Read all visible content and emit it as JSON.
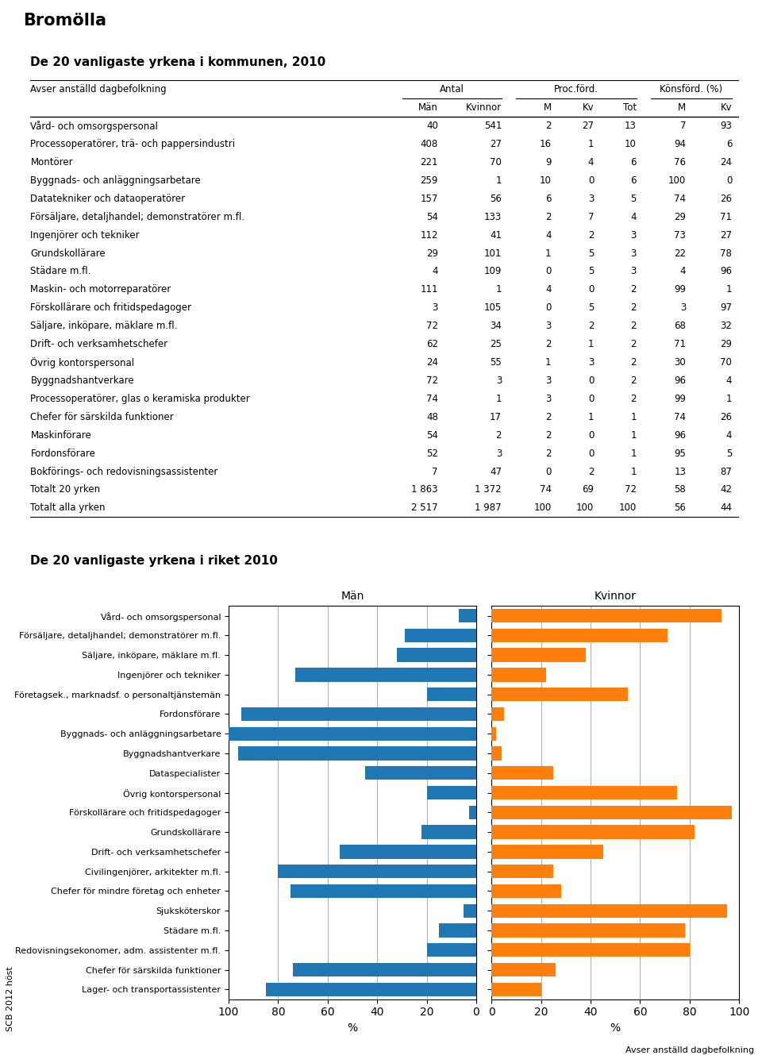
{
  "title": "Bromölla",
  "annotations": [
    "SCB 2012 höst"
  ],
  "chart_data": [
    {
      "type": "table",
      "title": "De 20 vanligaste yrkena i kommunen, 2010",
      "annotations": [
        "Avser anställd dagbefolkning"
      ],
      "categories": [
        "Vård- och omsorgspersonal",
        "Processoperatörer, trä- och pappersindustri",
        "Montörer",
        "Byggnads- och anläggningsarbetare",
        "Datatekniker och dataoperatörer",
        "Försäljare, detaljhandel; demonstratörer m.fl.",
        "Ingenjörer och tekniker",
        "Grundskollärare",
        "Städare m.fl.",
        "Maskin- och motorreparatörer",
        "Förskollärare och fritidspedagoger",
        "Säljare, inköpare, mäklare m.fl.",
        "Drift- och verksamhetschefer",
        "Övrig kontorspersonal",
        "Byggnadshantverkare",
        "Processoperatörer, glas o keramiska produkter",
        "Chefer för särskilda funktioner",
        "Maskinförare",
        "Fordonsförare",
        "Bokförings- och redovisningsassistenter",
        "Totalt 20 yrken",
        "Totalt alla yrken"
      ],
      "series": [
        {
          "name": "Män",
          "group": "Antal",
          "values": [
            40,
            408,
            221,
            259,
            157,
            54,
            112,
            29,
            4,
            111,
            3,
            72,
            62,
            24,
            72,
            74,
            48,
            54,
            52,
            7,
            1863,
            2517
          ],
          "value_labels": [
            "40",
            "408",
            "221",
            "259",
            "157",
            "54",
            "112",
            "29",
            "4",
            "111",
            "3",
            "72",
            "62",
            "24",
            "72",
            "74",
            "48",
            "54",
            "52",
            "7",
            "1 863",
            "2 517"
          ]
        },
        {
          "name": "Kvinnor",
          "group": "Antal",
          "values": [
            541,
            27,
            70,
            1,
            56,
            133,
            41,
            101,
            109,
            1,
            105,
            34,
            25,
            55,
            3,
            1,
            17,
            2,
            3,
            47,
            1372,
            1987
          ],
          "value_labels": [
            "541",
            "27",
            "70",
            "1",
            "56",
            "133",
            "41",
            "101",
            "109",
            "1",
            "105",
            "34",
            "25",
            "55",
            "3",
            "1",
            "17",
            "2",
            "3",
            "47",
            "1 372",
            "1 987"
          ]
        },
        {
          "name": "M",
          "group": "Proc.förd.",
          "values": [
            2,
            16,
            9,
            10,
            6,
            2,
            4,
            1,
            0,
            4,
            0,
            3,
            2,
            1,
            3,
            3,
            2,
            2,
            2,
            0,
            74,
            100
          ]
        },
        {
          "name": "Kv",
          "group": "Proc.förd.",
          "values": [
            27,
            1,
            4,
            0,
            3,
            7,
            2,
            5,
            5,
            0,
            5,
            2,
            1,
            3,
            0,
            0,
            1,
            0,
            0,
            2,
            69,
            100
          ]
        },
        {
          "name": "Tot",
          "group": "Proc.förd.",
          "values": [
            13,
            10,
            6,
            6,
            5,
            4,
            3,
            3,
            3,
            2,
            2,
            2,
            2,
            2,
            2,
            2,
            1,
            1,
            1,
            1,
            72,
            100
          ]
        },
        {
          "name": "M",
          "group": "Könsförd. (%)",
          "values": [
            7,
            94,
            76,
            100,
            74,
            29,
            73,
            22,
            4,
            99,
            3,
            68,
            71,
            30,
            96,
            99,
            74,
            96,
            95,
            13,
            58,
            56
          ]
        },
        {
          "name": "Kv",
          "group": "Könsförd. (%)",
          "values": [
            93,
            6,
            24,
            0,
            26,
            71,
            27,
            78,
            96,
            1,
            97,
            32,
            29,
            70,
            4,
            1,
            26,
            4,
            5,
            87,
            42,
            44
          ]
        }
      ]
    },
    {
      "type": "bar",
      "orientation": "horizontal",
      "title": "De 20 vanligaste yrkena i riket 2010",
      "annotations": [
        "Avser anställd dagbefolkning"
      ],
      "xlabel": "%",
      "categories": [
        "Vård- och omsorgspersonal",
        "Försäljare, detaljhandel; demonstratörer m.fl.",
        "Säljare, inköpare, mäklare m.fl.",
        "Ingenjörer och tekniker",
        "Företagsek., marknadsf. o personaltjänstemän",
        "Fordonsförare",
        "Byggnads- och anläggningsarbetare",
        "Byggnadshantverkare",
        "Dataspecialister",
        "Övrig kontorspersonal",
        "Förskollärare och fritidspedagoger",
        "Grundskollärare",
        "Drift- och verksamhetschefer",
        "Civilingenjörer, arkitekter m.fl.",
        "Chefer för mindre företag och enheter",
        "Sjuksköterskor",
        "Städare m.fl.",
        "Redovisningsekonomer, adm. assistenter m.fl.",
        "Chefer för särskilda funktioner",
        "Lager- och transportassistenter"
      ],
      "series": [
        {
          "name": "Män",
          "values": [
            7,
            29,
            32,
            73,
            20,
            95,
            100,
            96,
            45,
            20,
            3,
            22,
            55,
            80,
            75,
            5,
            15,
            20,
            74,
            85
          ]
        },
        {
          "name": "Kvinnor",
          "values": [
            93,
            71,
            38,
            22,
            55,
            5,
            2,
            4,
            25,
            75,
            97,
            82,
            45,
            25,
            28,
            95,
            78,
            80,
            26,
            20
          ]
        }
      ],
      "xlim": [
        0,
        100
      ],
      "xticks": [
        0,
        20,
        40,
        60,
        80,
        100
      ],
      "grid": true
    }
  ]
}
